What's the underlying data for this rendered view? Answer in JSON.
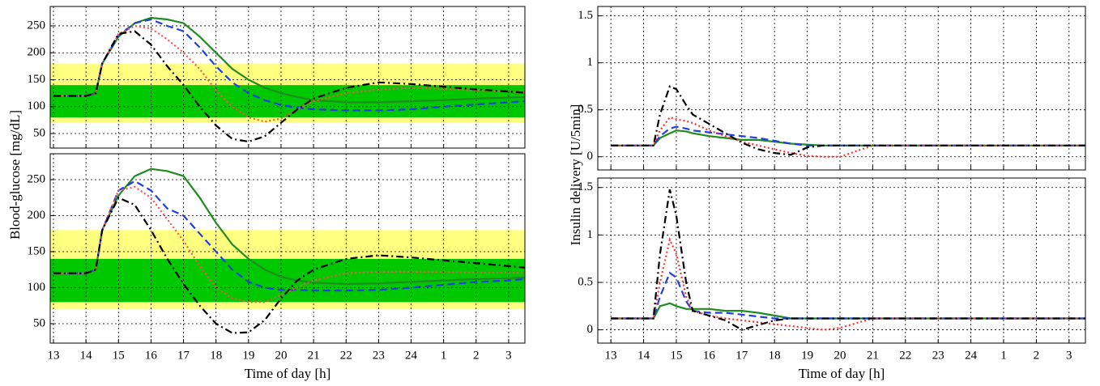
{
  "chart_data": [
    {
      "type": "line",
      "ylabel": "Blood-glucose [mg/dL]",
      "x": [
        13,
        14,
        14.3,
        14.5,
        15,
        15.5,
        16,
        16.5,
        17,
        17.5,
        18,
        18.5,
        19,
        19.5,
        20,
        20.5,
        21,
        22,
        23,
        24,
        25,
        26,
        27,
        27.5
      ],
      "xlim": [
        12.9,
        27.5
      ],
      "ylim": [
        23,
        286
      ],
      "yticks": [
        50,
        100,
        150,
        200,
        250
      ],
      "xticks": [
        13,
        14,
        15,
        16,
        17,
        18,
        19,
        20,
        21,
        22,
        23,
        24,
        25,
        26,
        27
      ],
      "xtick_labels": false,
      "grid": true,
      "bands": [
        {
          "range": [
            70,
            180
          ],
          "color": "#ffff80"
        },
        {
          "range": [
            80,
            140
          ],
          "color": "#00c800"
        }
      ],
      "series": [
        {
          "color": "#1e8c1e",
          "dash": "solid",
          "values": [
            120,
            120,
            125,
            180,
            230,
            255,
            265,
            262,
            255,
            230,
            200,
            170,
            150,
            135,
            125,
            118,
            112,
            108,
            108,
            110,
            112,
            115,
            117,
            118
          ]
        },
        {
          "color": "#1f3fe0",
          "dash": "dashed",
          "values": [
            120,
            120,
            125,
            180,
            232,
            255,
            262,
            250,
            240,
            210,
            175,
            145,
            125,
            112,
            103,
            98,
            95,
            93,
            93,
            95,
            100,
            104,
            108,
            110
          ]
        },
        {
          "color": "#ff5050",
          "dash": "dotted",
          "values": [
            120,
            120,
            125,
            180,
            235,
            250,
            245,
            225,
            200,
            170,
            130,
            100,
            80,
            72,
            78,
            95,
            110,
            125,
            132,
            135,
            133,
            130,
            128,
            127
          ]
        },
        {
          "color": "#000000",
          "dash": "dashdot",
          "values": [
            120,
            120,
            125,
            180,
            235,
            240,
            215,
            175,
            140,
            100,
            65,
            40,
            35,
            45,
            70,
            95,
            115,
            135,
            145,
            142,
            137,
            132,
            128,
            126
          ]
        }
      ]
    },
    {
      "type": "line",
      "xlabel": "Time of day [h]",
      "x": [
        13,
        14,
        14.3,
        14.5,
        15,
        15.5,
        16,
        16.5,
        17,
        17.5,
        18,
        18.5,
        19,
        19.5,
        20,
        20.5,
        21,
        22,
        23,
        24,
        25,
        26,
        27,
        27.5
      ],
      "xlim": [
        12.9,
        27.5
      ],
      "ylim": [
        23,
        286
      ],
      "yticks": [
        50,
        100,
        150,
        200,
        250
      ],
      "xticks": [
        13,
        14,
        15,
        16,
        17,
        18,
        19,
        20,
        21,
        22,
        23,
        24,
        {
          "value": 25,
          "label": "1"
        },
        {
          "value": 26,
          "label": "2"
        },
        {
          "value": 27,
          "label": "3"
        }
      ],
      "xtick_labels": true,
      "grid": true,
      "bands": [
        {
          "range": [
            70,
            180
          ],
          "color": "#ffff80"
        },
        {
          "range": [
            80,
            140
          ],
          "color": "#00c800"
        }
      ],
      "series": [
        {
          "color": "#1e8c1e",
          "dash": "solid",
          "values": [
            120,
            120,
            125,
            180,
            228,
            255,
            265,
            262,
            255,
            225,
            190,
            160,
            140,
            125,
            115,
            110,
            107,
            105,
            106,
            108,
            110,
            112,
            113,
            114
          ]
        },
        {
          "color": "#1f3fe0",
          "dash": "dashed",
          "values": [
            120,
            120,
            125,
            180,
            235,
            248,
            235,
            210,
            200,
            175,
            150,
            125,
            108,
            100,
            97,
            97,
            96,
            96,
            97,
            100,
            104,
            108,
            110,
            112
          ]
        },
        {
          "color": "#ff5050",
          "dash": "dotted",
          "values": [
            120,
            120,
            125,
            180,
            235,
            240,
            225,
            195,
            165,
            130,
            100,
            85,
            80,
            80,
            90,
            100,
            110,
            120,
            122,
            122,
            122,
            121,
            121,
            120
          ]
        },
        {
          "color": "#000000",
          "dash": "dashdot",
          "values": [
            120,
            120,
            125,
            180,
            225,
            215,
            180,
            140,
            105,
            75,
            50,
            37,
            38,
            55,
            85,
            110,
            125,
            140,
            145,
            142,
            138,
            134,
            130,
            128
          ]
        }
      ]
    },
    {
      "type": "line",
      "ylabel": "Insulin delivery  [U/5min]",
      "x": [
        13,
        14,
        14.3,
        14.5,
        14.8,
        15,
        15.3,
        15.5,
        16,
        16.5,
        17,
        17.5,
        18,
        18.5,
        19,
        19.5,
        20,
        21,
        22,
        23,
        24,
        25,
        26,
        27,
        27.5
      ],
      "xlim": [
        12.6,
        27.5
      ],
      "ylim": [
        -0.14,
        1.6
      ],
      "yticks": [
        0,
        0.5,
        1,
        1.5
      ],
      "xticks": [
        13,
        14,
        15,
        16,
        17,
        18,
        19,
        20,
        21,
        22,
        23,
        24,
        25,
        26,
        27
      ],
      "xtick_labels": false,
      "grid": true,
      "series": [
        {
          "color": "#1e8c1e",
          "dash": "solid",
          "values": [
            0.12,
            0.12,
            0.12,
            0.2,
            0.25,
            0.28,
            0.27,
            0.25,
            0.22,
            0.2,
            0.18,
            0.18,
            0.16,
            0.14,
            0.13,
            0.12,
            0.12,
            0.12,
            0.12,
            0.12,
            0.12,
            0.12,
            0.12,
            0.12,
            0.12
          ]
        },
        {
          "color": "#1f3fe0",
          "dash": "dashed",
          "values": [
            0.12,
            0.12,
            0.12,
            0.22,
            0.3,
            0.32,
            0.3,
            0.28,
            0.26,
            0.24,
            0.22,
            0.2,
            0.17,
            0.14,
            0.12,
            0.12,
            0.12,
            0.12,
            0.12,
            0.12,
            0.12,
            0.12,
            0.12,
            0.12,
            0.12
          ]
        },
        {
          "color": "#ff3030",
          "dash": "dotted",
          "values": [
            0.12,
            0.12,
            0.12,
            0.28,
            0.42,
            0.4,
            0.38,
            0.36,
            0.28,
            0.22,
            0.16,
            0.12,
            0.08,
            0.04,
            0.01,
            0,
            0,
            0.12,
            0.12,
            0.12,
            0.12,
            0.12,
            0.12,
            0.12,
            0.12
          ]
        },
        {
          "color": "#000000",
          "dash": "dashdot",
          "values": [
            0.12,
            0.12,
            0.12,
            0.45,
            0.75,
            0.72,
            0.55,
            0.45,
            0.35,
            0.25,
            0.15,
            0.08,
            0.04,
            0.02,
            0.1,
            0.12,
            0.12,
            0.12,
            0.12,
            0.12,
            0.12,
            0.12,
            0.12,
            0.12,
            0.12
          ]
        }
      ]
    },
    {
      "type": "line",
      "xlabel": "Time of day [h]",
      "x": [
        13,
        14,
        14.3,
        14.5,
        14.8,
        15,
        15.3,
        15.5,
        16,
        16.5,
        17,
        17.5,
        18,
        18.5,
        19,
        19.5,
        20,
        21,
        22,
        23,
        24,
        25,
        26,
        27,
        27.5
      ],
      "xlim": [
        12.6,
        27.5
      ],
      "ylim": [
        -0.14,
        1.6
      ],
      "yticks": [
        0,
        0.5,
        1,
        1.5
      ],
      "xticks": [
        13,
        14,
        15,
        16,
        17,
        18,
        19,
        20,
        21,
        22,
        23,
        24,
        {
          "value": 25,
          "label": "1"
        },
        {
          "value": 26,
          "label": "2"
        },
        {
          "value": 27,
          "label": "3"
        }
      ],
      "xtick_labels": true,
      "grid": true,
      "series": [
        {
          "color": "#1e8c1e",
          "dash": "solid",
          "values": [
            0.12,
            0.12,
            0.12,
            0.25,
            0.28,
            0.25,
            0.22,
            0.22,
            0.22,
            0.2,
            0.2,
            0.18,
            0.15,
            0.12,
            0.12,
            0.12,
            0.12,
            0.12,
            0.12,
            0.12,
            0.12,
            0.12,
            0.12,
            0.12,
            0.12
          ]
        },
        {
          "color": "#1f3fe0",
          "dash": "dashed",
          "values": [
            0.12,
            0.12,
            0.12,
            0.35,
            0.6,
            0.55,
            0.3,
            0.2,
            0.18,
            0.18,
            0.16,
            0.14,
            0.12,
            0.12,
            0.12,
            0.12,
            0.12,
            0.12,
            0.12,
            0.12,
            0.12,
            0.12,
            0.12,
            0.12,
            0.12
          ]
        },
        {
          "color": "#ff3030",
          "dash": "dotted",
          "values": [
            0.12,
            0.12,
            0.12,
            0.5,
            0.95,
            0.8,
            0.35,
            0.2,
            0.15,
            0.12,
            0.1,
            0.08,
            0.06,
            0.04,
            0.02,
            0,
            0.02,
            0.12,
            0.12,
            0.12,
            0.12,
            0.12,
            0.12,
            0.12,
            0.12
          ]
        },
        {
          "color": "#000000",
          "dash": "dashdot",
          "values": [
            0.12,
            0.12,
            0.12,
            0.8,
            1.48,
            1.2,
            0.5,
            0.2,
            0.15,
            0.1,
            0,
            0.05,
            0.1,
            0.12,
            0.12,
            0.12,
            0.12,
            0.12,
            0.12,
            0.12,
            0.12,
            0.12,
            0.12,
            0.12,
            0.12
          ]
        }
      ]
    }
  ]
}
